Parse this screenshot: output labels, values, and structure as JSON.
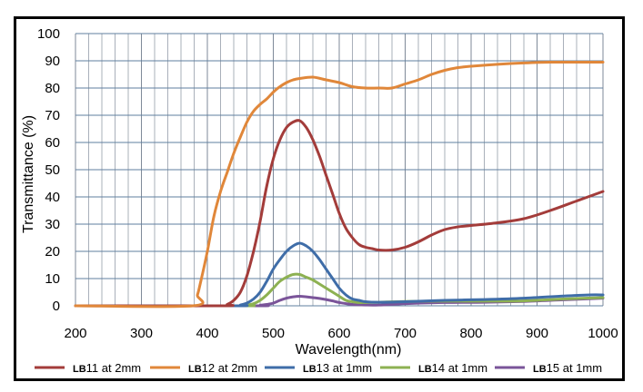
{
  "chart_data": {
    "type": "line",
    "title": "",
    "xlabel": "Wavelength(nm)",
    "ylabel": "Transmittance (%)",
    "xlim": [
      200,
      1000
    ],
    "ylim": [
      0,
      100
    ],
    "x_ticks": [
      200,
      300,
      400,
      500,
      600,
      700,
      800,
      900,
      1000
    ],
    "x_tick_labels": [
      "200",
      "300",
      "400",
      "500",
      "600",
      "700",
      "800",
      "900",
      "1000"
    ],
    "y_ticks": [
      0,
      10,
      20,
      30,
      40,
      50,
      60,
      70,
      80,
      90,
      100
    ],
    "y_tick_labels": [
      "0",
      "10",
      "20",
      "30",
      "40",
      "50",
      "60",
      "70",
      "80",
      "90",
      "100"
    ],
    "x_minor_step": 20,
    "grid": true,
    "legend_position": "bottom",
    "series": [
      {
        "name": "LB11 at 2mm",
        "prefix": "LB",
        "suffix": "11 at 2mm",
        "color": "#A33C3A",
        "x": [
          200,
          420,
          430,
          440,
          450,
          460,
          470,
          480,
          490,
          500,
          510,
          520,
          530,
          540,
          550,
          560,
          570,
          580,
          590,
          600,
          610,
          620,
          630,
          640,
          650,
          660,
          680,
          700,
          720,
          740,
          760,
          780,
          800,
          840,
          880,
          920,
          960,
          1000
        ],
        "y": [
          0,
          0,
          0.5,
          2,
          5,
          11,
          20,
          31,
          44,
          54,
          61,
          65.5,
          67.5,
          68,
          65.5,
          61,
          55,
          48,
          41,
          34,
          28.5,
          25,
          22.5,
          21.5,
          21,
          20.5,
          20.5,
          21.5,
          23.5,
          26,
          28,
          29,
          29.5,
          30.5,
          32,
          35,
          38.5,
          42
        ]
      },
      {
        "name": "LB12 at 2mm",
        "prefix": "LB",
        "suffix": "12 at 2mm",
        "color": "#E0873A",
        "x": [
          200,
          378,
          385,
          390,
          400,
          410,
          420,
          430,
          440,
          450,
          460,
          470,
          480,
          490,
          500,
          510,
          520,
          530,
          540,
          560,
          580,
          600,
          620,
          640,
          660,
          680,
          700,
          720,
          740,
          760,
          780,
          800,
          840,
          880,
          920,
          960,
          1000
        ],
        "y": [
          0,
          0,
          4,
          9,
          20,
          33,
          42,
          49,
          56,
          62,
          67.5,
          71.5,
          74,
          76,
          78.5,
          80.5,
          82,
          83,
          83.5,
          84,
          83,
          82,
          80.5,
          80,
          80,
          80,
          81.5,
          83,
          85,
          86.5,
          87.5,
          88,
          88.7,
          89.2,
          89.5,
          89.5,
          89.5
        ]
      },
      {
        "name": "LB13 at 1mm",
        "prefix": "LB",
        "suffix": "13 at 1mm",
        "color": "#3F6DA8",
        "x": [
          200,
          440,
          450,
          460,
          470,
          480,
          490,
          500,
          510,
          520,
          530,
          540,
          550,
          560,
          570,
          580,
          590,
          600,
          610,
          620,
          630,
          640,
          660,
          700,
          760,
          820,
          880,
          940,
          980,
          1000
        ],
        "y": [
          0,
          0,
          0.3,
          1,
          2.5,
          5,
          9,
          13.5,
          17,
          20,
          22,
          23,
          22,
          20,
          17,
          13.5,
          10,
          6.5,
          4,
          2.5,
          2,
          1.5,
          1.3,
          1.5,
          2,
          2.3,
          2.8,
          3.6,
          4,
          4
        ]
      },
      {
        "name": "LB14 at 1mm",
        "prefix": "LB",
        "suffix": "14 at 1mm",
        "color": "#8DB152",
        "x": [
          200,
          450,
          460,
          470,
          480,
          490,
          500,
          510,
          520,
          530,
          540,
          550,
          560,
          570,
          580,
          590,
          600,
          610,
          620,
          630,
          640,
          660,
          700,
          760,
          820,
          880,
          940,
          1000
        ],
        "y": [
          0,
          0,
          0.3,
          0.8,
          2,
          4,
          6.5,
          9,
          10.5,
          11.5,
          11.5,
          10.5,
          9.5,
          8,
          6.5,
          5,
          3.5,
          2,
          1.5,
          1.2,
          1.2,
          1.3,
          1.6,
          1.7,
          1.7,
          1.8,
          2.5,
          3
        ]
      },
      {
        "name": "LB15 at 1mm",
        "prefix": "LB",
        "suffix": "15 at 1mm",
        "color": "#7A5499",
        "x": [
          200,
          470,
          480,
          490,
          500,
          510,
          520,
          530,
          540,
          550,
          560,
          570,
          580,
          590,
          600,
          620,
          640,
          660,
          700,
          760,
          820,
          880,
          940,
          1000
        ],
        "y": [
          0,
          0,
          0.2,
          0.5,
          1,
          2,
          2.8,
          3.3,
          3.5,
          3.3,
          3,
          2.7,
          2.3,
          1.8,
          1.2,
          0.5,
          0.3,
          0.3,
          0.8,
          1.2,
          1.3,
          1.6,
          2.2,
          2.8
        ]
      }
    ]
  }
}
